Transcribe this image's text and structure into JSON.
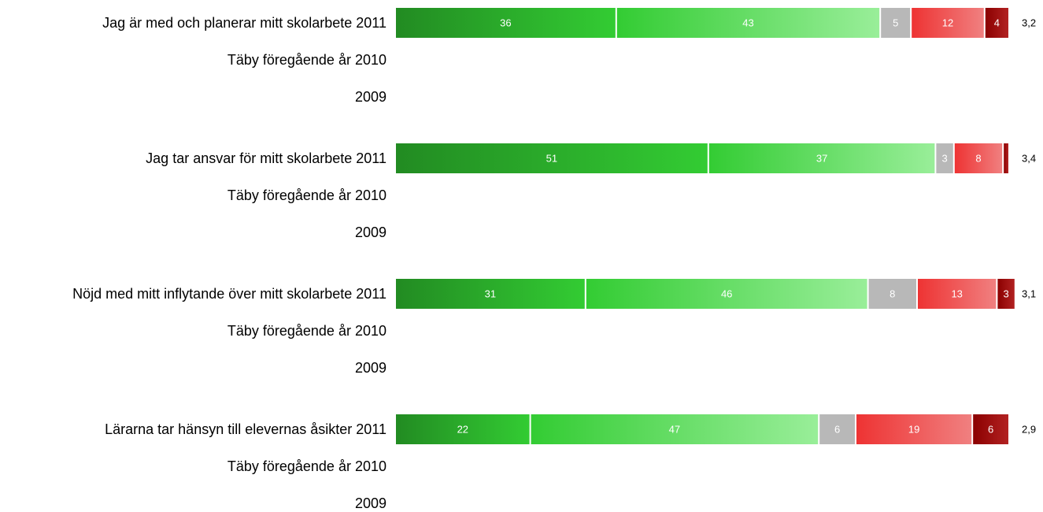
{
  "chart_data": {
    "type": "bar",
    "orientation": "horizontal",
    "stacked": true,
    "grid": false,
    "xlim": [
      0,
      100
    ],
    "segment_colors": [
      {
        "from": "#228b22",
        "to": "#33cc33"
      },
      {
        "from": "#33cc33",
        "to": "#99ee99"
      },
      {
        "from": "#b8b8b8",
        "to": "#b8b8b8"
      },
      {
        "from": "#ee3333",
        "to": "#f08080"
      },
      {
        "from": "#8b0000",
        "to": "#b22222"
      }
    ],
    "groups": [
      {
        "rows": [
          {
            "label": "Jag är med och planerar mitt skolarbete 2011",
            "values": [
              36,
              43,
              5,
              12,
              4
            ],
            "mean": "3,2"
          },
          {
            "label": "Täby föregående år 2010",
            "values": [],
            "mean": ""
          },
          {
            "label": "2009",
            "values": [],
            "mean": ""
          }
        ]
      },
      {
        "rows": [
          {
            "label": "Jag tar ansvar för mitt skolarbete 2011",
            "values": [
              51,
              37,
              3,
              8,
              1
            ],
            "mean": "3,4"
          },
          {
            "label": "Täby föregående år 2010",
            "values": [],
            "mean": ""
          },
          {
            "label": "2009",
            "values": [],
            "mean": ""
          }
        ]
      },
      {
        "rows": [
          {
            "label": "Nöjd med mitt inflytande över mitt skolarbete 2011",
            "values": [
              31,
              46,
              8,
              13,
              3
            ],
            "mean": "3,1"
          },
          {
            "label": "Täby föregående år 2010",
            "values": [],
            "mean": ""
          },
          {
            "label": "2009",
            "values": [],
            "mean": ""
          }
        ]
      },
      {
        "rows": [
          {
            "label": "Lärarna tar hänsyn till elevernas åsikter 2011",
            "values": [
              22,
              47,
              6,
              19,
              6
            ],
            "mean": "2,9"
          },
          {
            "label": "Täby föregående år 2010",
            "values": [],
            "mean": ""
          },
          {
            "label": "2009",
            "values": [],
            "mean": ""
          }
        ]
      }
    ],
    "segment_label_min_value": 2
  }
}
